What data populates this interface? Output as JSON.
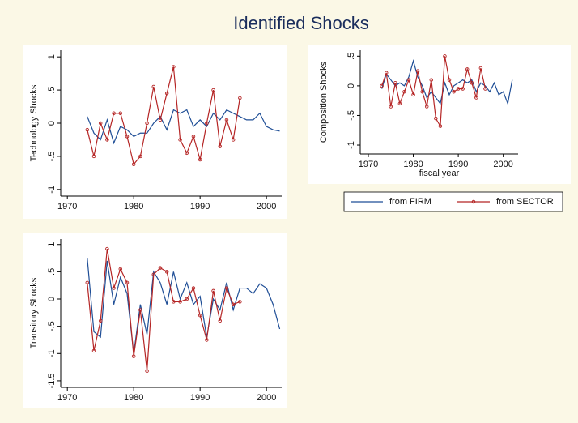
{
  "title": "Identified Shocks",
  "chart_data": [
    {
      "type": "line",
      "ylabel": "Technology Shocks",
      "x": [
        1973,
        1974,
        1975,
        1976,
        1977,
        1978,
        1979,
        1980,
        1981,
        1982,
        1983,
        1984,
        1985,
        1986,
        1987,
        1988,
        1989,
        1990,
        1991,
        1992,
        1993,
        1994,
        1995,
        1996,
        1997,
        1998,
        1999,
        2000,
        2001,
        2002
      ],
      "xlim": [
        1969,
        2002.3
      ],
      "xticks": [
        1970,
        1980,
        1990,
        2000
      ],
      "ylim": [
        -1.1,
        1.1
      ],
      "yticks": [
        -1,
        {
          "value": -0.5,
          "label": "-.5"
        },
        0,
        {
          "value": 0.5,
          "label": ".5"
        },
        1
      ],
      "series": [
        {
          "name": "from FIRM",
          "color": "#1f4e96",
          "values": [
            0.1,
            -0.15,
            -0.25,
            0.05,
            -0.3,
            -0.05,
            -0.1,
            -0.2,
            -0.15,
            -0.15,
            0.0,
            0.1,
            -0.1,
            0.2,
            0.15,
            0.2,
            -0.05,
            0.05,
            -0.05,
            0.15,
            0.05,
            0.2,
            0.15,
            0.1,
            0.05,
            0.05,
            0.15,
            -0.05,
            -0.1,
            -0.12
          ]
        },
        {
          "name": "from SECTOR",
          "color": "#b52525",
          "markers": true,
          "values": [
            -0.1,
            -0.5,
            0.0,
            -0.25,
            0.15,
            0.15,
            -0.2,
            -0.62,
            -0.5,
            0.0,
            0.55,
            0.05,
            0.45,
            0.85,
            -0.25,
            -0.45,
            -0.2,
            -0.55,
            0.0,
            0.5,
            -0.35,
            0.05,
            -0.25,
            0.38,
            null,
            null,
            null,
            null,
            null,
            null
          ]
        }
      ]
    },
    {
      "type": "line",
      "ylabel": "Composition Shocks",
      "xlabel": "fiscal year",
      "legend": "below",
      "x": [
        1973,
        1974,
        1975,
        1976,
        1977,
        1978,
        1979,
        1980,
        1981,
        1982,
        1983,
        1984,
        1985,
        1986,
        1987,
        1988,
        1989,
        1990,
        1991,
        1992,
        1993,
        1994,
        1995,
        1996,
        1997,
        1998,
        1999,
        2000,
        2001,
        2002
      ],
      "xlim": [
        1968.2,
        2003.3
      ],
      "xticks": [
        1970,
        1980,
        1990,
        2000
      ],
      "ylim": [
        -1.15,
        0.6
      ],
      "yticks": [
        -1,
        {
          "value": -0.5,
          "label": "-.5"
        },
        0,
        {
          "value": 0.5,
          "label": ".5"
        }
      ],
      "series": [
        {
          "name": "from FIRM",
          "color": "#1f4e96",
          "values": [
            -0.05,
            0.2,
            0.1,
            0.0,
            0.05,
            0.0,
            0.15,
            0.42,
            0.15,
            0.0,
            -0.2,
            -0.1,
            -0.2,
            -0.3,
            0.05,
            -0.15,
            0.0,
            0.05,
            0.1,
            0.05,
            0.1,
            -0.1,
            0.05,
            0.0,
            -0.1,
            0.05,
            -0.15,
            -0.1,
            -0.3,
            0.1
          ]
        },
        {
          "name": "from SECTOR",
          "color": "#b52525",
          "markers": true,
          "values": [
            0.0,
            0.22,
            -0.35,
            0.05,
            -0.3,
            -0.1,
            0.1,
            -0.15,
            0.25,
            -0.1,
            -0.35,
            0.1,
            -0.55,
            -0.68,
            0.5,
            0.1,
            -0.1,
            -0.05,
            -0.05,
            0.28,
            0.05,
            -0.2,
            0.3,
            -0.05,
            null,
            null,
            null,
            null,
            null,
            null
          ]
        }
      ]
    },
    {
      "type": "line",
      "ylabel": "Transitory Shocks",
      "x": [
        1973,
        1974,
        1975,
        1976,
        1977,
        1978,
        1979,
        1980,
        1981,
        1982,
        1983,
        1984,
        1985,
        1986,
        1987,
        1988,
        1989,
        1990,
        1991,
        1992,
        1993,
        1994,
        1995,
        1996,
        1997,
        1998,
        1999,
        2000,
        2001,
        2002
      ],
      "xlim": [
        1969,
        2002.3
      ],
      "xticks": [
        1970,
        1980,
        1990,
        2000
      ],
      "ylim": [
        -1.62,
        1.1
      ],
      "yticks": [
        -1.5,
        -1,
        {
          "value": -0.5,
          "label": "-.5"
        },
        0,
        {
          "value": 0.5,
          "label": ".5"
        },
        1
      ],
      "series": [
        {
          "name": "from FIRM",
          "color": "#1f4e96",
          "values": [
            0.75,
            -0.6,
            -0.7,
            0.7,
            -0.1,
            0.4,
            0.1,
            -1.0,
            -0.1,
            -0.65,
            0.5,
            0.3,
            -0.1,
            0.5,
            0.0,
            0.3,
            -0.1,
            0.05,
            -0.7,
            0.0,
            -0.2,
            0.3,
            -0.2,
            0.2,
            0.2,
            0.1,
            0.28,
            0.2,
            -0.1,
            -0.55
          ]
        },
        {
          "name": "from SECTOR",
          "color": "#b52525",
          "markers": true,
          "values": [
            0.3,
            -0.95,
            -0.4,
            0.92,
            0.2,
            0.55,
            0.3,
            -1.05,
            -0.2,
            -1.32,
            0.45,
            0.57,
            0.5,
            -0.05,
            -0.05,
            0.0,
            0.2,
            -0.3,
            -0.75,
            0.15,
            -0.4,
            0.2,
            -0.1,
            -0.05,
            null,
            null,
            null,
            null,
            null,
            null
          ]
        }
      ]
    }
  ]
}
